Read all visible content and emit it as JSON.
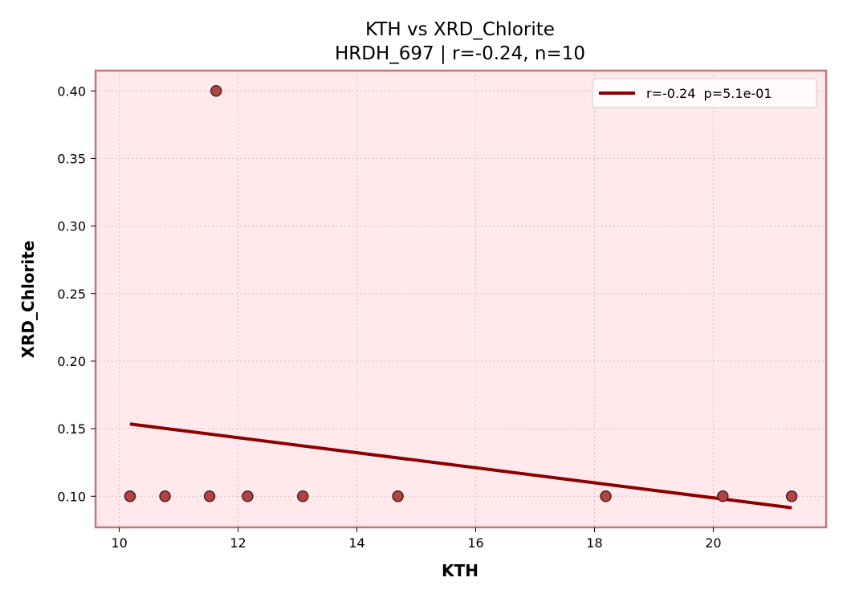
{
  "chart_data": {
    "type": "scatter",
    "title": "KTH vs XRD_Chlorite",
    "subtitle": "HRDH_697 | r=-0.24, n=10",
    "xlabel": "KTH",
    "ylabel": "XRD_Chlorite",
    "xlim": [
      9.6,
      21.9
    ],
    "ylim": [
      0.077,
      0.415
    ],
    "xticks": [
      10,
      12,
      14,
      16,
      18,
      20
    ],
    "yticks": [
      0.1,
      0.15,
      0.2,
      0.25,
      0.3,
      0.35,
      0.4
    ],
    "xtick_labels": [
      "10",
      "12",
      "14",
      "16",
      "18",
      "20"
    ],
    "ytick_labels": [
      "0.10",
      "0.15",
      "0.20",
      "0.25",
      "0.30",
      "0.35",
      "0.40"
    ],
    "grid": true,
    "legend_position": "top-right",
    "points": [
      {
        "x": 10.18,
        "y": 0.1
      },
      {
        "x": 10.77,
        "y": 0.1
      },
      {
        "x": 11.52,
        "y": 0.1
      },
      {
        "x": 11.63,
        "y": 0.4
      },
      {
        "x": 12.16,
        "y": 0.1
      },
      {
        "x": 13.09,
        "y": 0.1
      },
      {
        "x": 14.69,
        "y": 0.1
      },
      {
        "x": 18.19,
        "y": 0.1
      },
      {
        "x": 20.16,
        "y": 0.1
      },
      {
        "x": 21.32,
        "y": 0.1
      }
    ],
    "fit_line": {
      "label": "r=-0.24  p=5.1e-01",
      "x": [
        10.18,
        21.32
      ],
      "y": [
        0.1535,
        0.0915
      ]
    },
    "colors": {
      "background": "#ffe9ec",
      "frame": "#c07878",
      "marker_fill": "#b04444",
      "marker_edge": "#4a2020",
      "fit_line": "#8b0000",
      "grid": "#d8bcbc"
    }
  }
}
